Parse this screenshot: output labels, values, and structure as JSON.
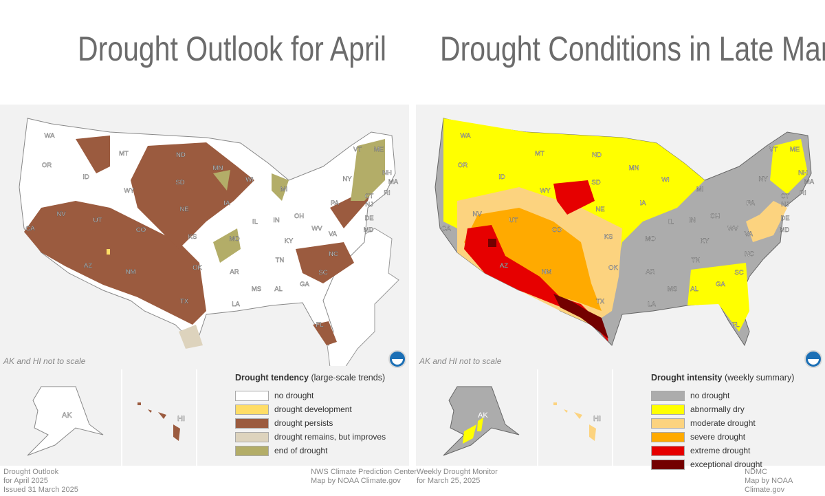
{
  "left": {
    "title": "Drought Outlook for April",
    "note": "AK and HI not to scale",
    "legend": {
      "title_bold": "Drought tendency",
      "title_rest": "(large-scale trends)",
      "items": [
        {
          "label": "no drought",
          "color": "#ffffff"
        },
        {
          "label": "drought development",
          "color": "#ffdd66"
        },
        {
          "label": "drought persists",
          "color": "#9b5b3f"
        },
        {
          "label": "drought remains, but improves",
          "color": "#ddd3bd"
        },
        {
          "label": "end of drought",
          "color": "#b3ad68"
        }
      ]
    },
    "footer_left": [
      "Drought Outlook",
      "for April 2025",
      "Issued 31 March 2025"
    ],
    "footer_right": [
      "NWS Climate Prediction Center",
      "Map by NOAA Climate.gov"
    ]
  },
  "right": {
    "title": "Drought Conditions in Late March",
    "note": "AK and HI not to scale",
    "legend": {
      "title_bold": "Drought intensity",
      "title_rest": "(weekly summary)",
      "items": [
        {
          "label": "no drought",
          "color": "#acacac"
        },
        {
          "label": "abnormally dry",
          "color": "#ffff00"
        },
        {
          "label": "moderate drought",
          "color": "#fcd37f"
        },
        {
          "label": "severe drought",
          "color": "#ffaa00"
        },
        {
          "label": "extreme drought",
          "color": "#e60000"
        },
        {
          "label": "exceptional drought",
          "color": "#730000"
        }
      ]
    },
    "footer_left": [
      "Weekly Drought Monitor",
      "for March 25, 2025"
    ],
    "footer_right": [
      "NDMC",
      "Map by NOAA Climate.gov"
    ]
  },
  "state_labels": [
    "WA",
    "OR",
    "ID",
    "MT",
    "WY",
    "ND",
    "SD",
    "NE",
    "MN",
    "WI",
    "MI",
    "IA",
    "IL",
    "IN",
    "OH",
    "PA",
    "NY",
    "VT",
    "ME",
    "NH",
    "MA",
    "RI",
    "CT",
    "NJ",
    "DE",
    "MD",
    "NV",
    "UT",
    "CO",
    "KS",
    "MO",
    "KY",
    "WV",
    "VA",
    "CA",
    "AZ",
    "NM",
    "OK",
    "AR",
    "TN",
    "NC",
    "SC",
    "GA",
    "AL",
    "MS",
    "LA",
    "TX",
    "FL"
  ],
  "inset_labels": [
    "AK",
    "HI"
  ]
}
